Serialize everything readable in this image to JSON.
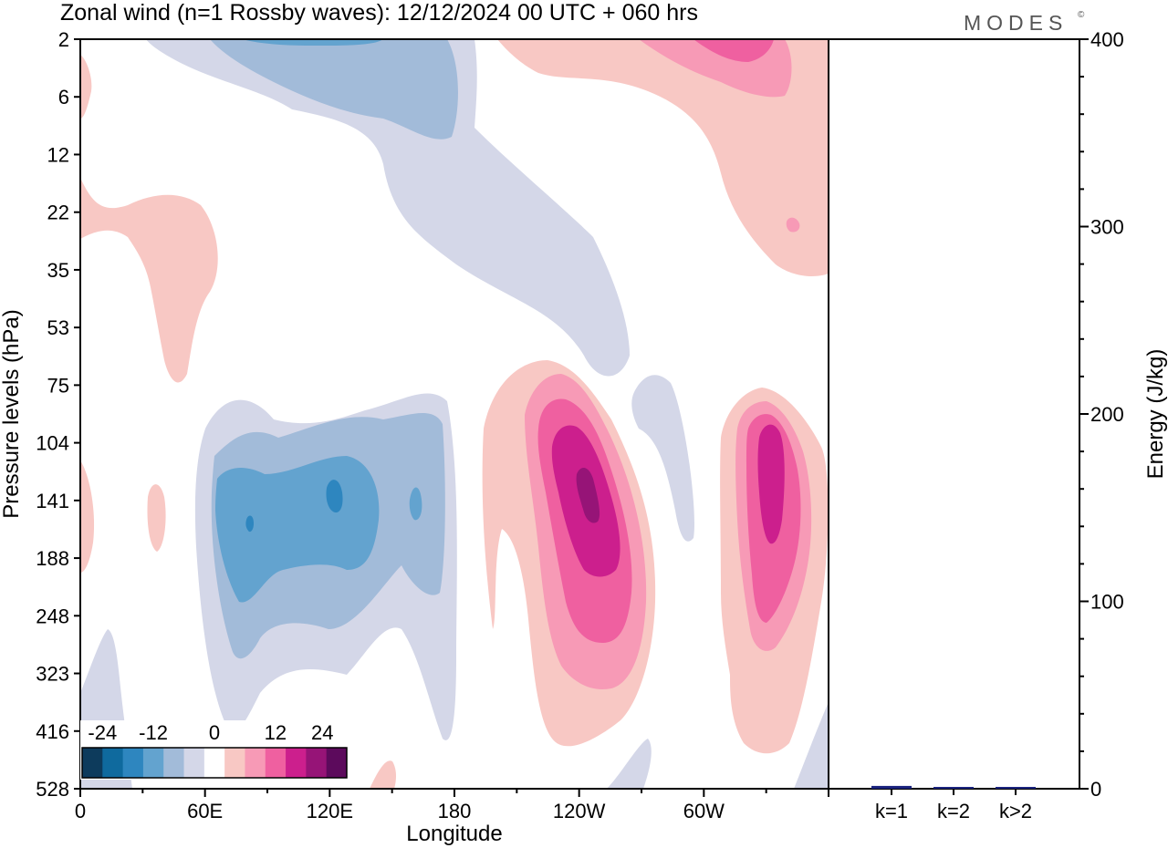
{
  "header": {
    "title": "Zonal wind (n=1 Rossby waves):  12/12/2024  00 UTC  + 060 hrs",
    "brand": "MODES",
    "brand_mark": "©"
  },
  "chart_data": [
    {
      "type": "heatmap",
      "title": "Zonal wind (n=1 Rossby waves):  12/12/2024  00 UTC  + 060 hrs",
      "xlabel": "Longitude",
      "ylabel": "Pressure levels (hPa)",
      "x_ticks": [
        "0",
        "60E",
        "120E",
        "180",
        "120W",
        "60W"
      ],
      "y_ticks": [
        "2",
        "6",
        "12",
        "22",
        "35",
        "53",
        "75",
        "104",
        "141",
        "188",
        "248",
        "323",
        "416",
        "528"
      ],
      "colorbar": {
        "ticks": [
          "-24",
          "-12",
          "0",
          "12",
          "24"
        ],
        "levels": [
          -30,
          -24,
          -18,
          -12,
          -6,
          0,
          6,
          12,
          18,
          24,
          30
        ],
        "colors": [
          "#0d3b5c",
          "#0f6a9e",
          "#2e86bf",
          "#63a3cf",
          "#a2bbd9",
          "#d4d7e8",
          "#ffffff",
          "#f8c8c4",
          "#f79ab6",
          "#ef60a0",
          "#cc1f8d",
          "#961477",
          "#5c0a5c"
        ]
      },
      "features": [
        {
          "label": "negative core",
          "lon": "120E",
          "level": "141",
          "value": -24
        },
        {
          "label": "negative anomaly",
          "lon": "80E-170E",
          "level": "75-323",
          "value": -18
        },
        {
          "label": "negative anomaly",
          "lon": "60E-120W",
          "level": "2-75",
          "value": -12
        },
        {
          "label": "positive core",
          "lon": "125W",
          "level": "141",
          "value": 24
        },
        {
          "label": "positive core",
          "lon": "35W",
          "level": "141",
          "value": 18
        },
        {
          "label": "positive anomaly",
          "lon": "170W-60W",
          "level": "2-22",
          "value": 12
        }
      ]
    },
    {
      "type": "bar",
      "title": "",
      "ylabel": "Energy (J/kg)",
      "categories": [
        "k=1",
        "k=2",
        "k>2"
      ],
      "values": [
        1.5,
        0.5,
        0.5
      ],
      "ylim": [
        0,
        400
      ],
      "y_ticks": [
        "0",
        "100",
        "200",
        "300",
        "400"
      ],
      "bar_color": "#1a237e"
    }
  ]
}
